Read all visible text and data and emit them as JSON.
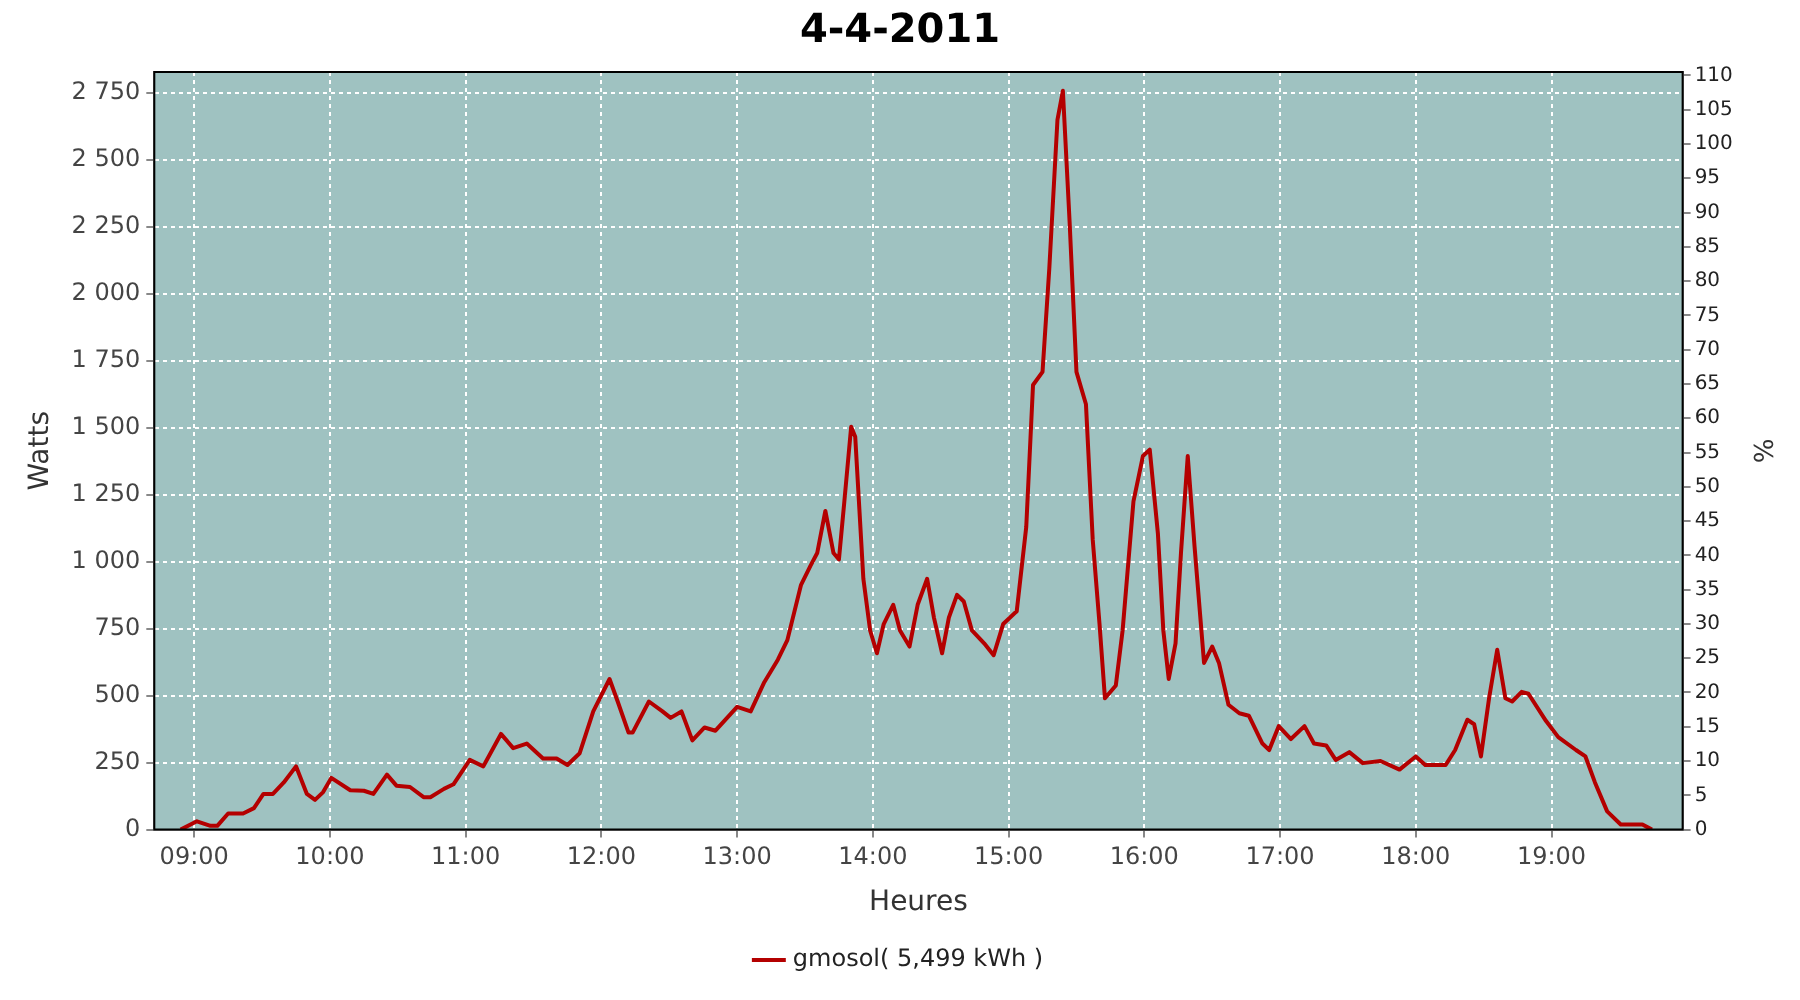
{
  "chart_data": {
    "type": "line",
    "title": "4-4-2011",
    "xlabel": "Heures",
    "ylabel": "Watts",
    "y2label": "%",
    "x": [
      8.9,
      9.02,
      9.12,
      9.17,
      9.25,
      9.36,
      9.44,
      9.51,
      9.58,
      9.66,
      9.75,
      9.83,
      9.89,
      9.95,
      10.01,
      10.15,
      10.25,
      10.32,
      10.42,
      10.49,
      10.59,
      10.69,
      10.74,
      10.84,
      10.91,
      11.03,
      11.13,
      11.26,
      11.35,
      11.45,
      11.57,
      11.67,
      11.75,
      11.84,
      11.94,
      12.06,
      12.12,
      12.2,
      12.23,
      12.35,
      12.45,
      12.51,
      12.59,
      12.67,
      12.76,
      12.84,
      13.0,
      13.1,
      13.2,
      13.3,
      13.37,
      13.47,
      13.54,
      13.59,
      13.65,
      13.71,
      13.75,
      13.79,
      13.84,
      13.87,
      13.93,
      13.98,
      14.03,
      14.08,
      14.15,
      14.2,
      14.27,
      14.33,
      14.4,
      14.45,
      14.51,
      14.56,
      14.62,
      14.67,
      14.73,
      14.82,
      14.89,
      14.96,
      15.06,
      15.13,
      15.18,
      15.25,
      15.3,
      15.36,
      15.4,
      15.45,
      15.5,
      15.57,
      15.62,
      15.67,
      15.71,
      15.79,
      15.84,
      15.92,
      15.99,
      16.04,
      16.1,
      16.14,
      16.18,
      16.23,
      16.27,
      16.32,
      16.37,
      16.44,
      16.5,
      16.55,
      16.62,
      16.7,
      16.77,
      16.87,
      16.92,
      16.99,
      17.08,
      17.18,
      17.25,
      17.34,
      17.41,
      17.51,
      17.61,
      17.74,
      17.88,
      18.0,
      18.07,
      18.22,
      18.29,
      18.38,
      18.43,
      18.48,
      18.54,
      18.6,
      18.66,
      18.71,
      18.78,
      18.83,
      18.96,
      19.05,
      19.18,
      19.25,
      19.32,
      19.41,
      19.51,
      19.67,
      19.74
    ],
    "series": [
      {
        "name": "gmosol( 5,499 kWh )",
        "color": "#b40000",
        "values": [
          0,
          31,
          14,
          14,
          60,
          60,
          80,
          133,
          133,
          176,
          236,
          133,
          111,
          140,
          193,
          147,
          145,
          133,
          205,
          164,
          159,
          121,
          121,
          152,
          169,
          260,
          236,
          357,
          304,
          321,
          265,
          265,
          241,
          285,
          441,
          562,
          478,
          362,
          362,
          478,
          441,
          417,
          441,
          333,
          381,
          369,
          458,
          441,
          550,
          634,
          707,
          912,
          984,
          1032,
          1189,
          1032,
          1008,
          1225,
          1503,
          1466,
          936,
          743,
          658,
          767,
          839,
          743,
          683,
          839,
          936,
          791,
          658,
          791,
          876,
          851,
          743,
          695,
          651,
          767,
          815,
          1129,
          1659,
          1708,
          2094,
          2648,
          2757,
          2263,
          1708,
          1587,
          1081,
          767,
          490,
          538,
          743,
          1225,
          1394,
          1418,
          1105,
          743,
          562,
          695,
          1032,
          1394,
          1057,
          622,
          683,
          622,
          466,
          434,
          425,
          321,
          297,
          386,
          338,
          386,
          321,
          314,
          260,
          289,
          248,
          256,
          224,
          273,
          241,
          241,
          297,
          410,
          393,
          273,
          490,
          671,
          490,
          478,
          514,
          507,
          405,
          345,
          297,
          273,
          176,
          68,
          19,
          19,
          0
        ]
      }
    ],
    "xlim": [
      8.706,
      19.966
    ],
    "xticks": [
      {
        "value": 9,
        "label": "09:00"
      },
      {
        "value": 10,
        "label": "10:00"
      },
      {
        "value": 11,
        "label": "11:00"
      },
      {
        "value": 12,
        "label": "12:00"
      },
      {
        "value": 13,
        "label": "13:00"
      },
      {
        "value": 14,
        "label": "14:00"
      },
      {
        "value": 15,
        "label": "15:00"
      },
      {
        "value": 16,
        "label": "16:00"
      },
      {
        "value": 17,
        "label": "17:00"
      },
      {
        "value": 18,
        "label": "18:00"
      },
      {
        "value": 19,
        "label": "19:00"
      }
    ],
    "ylim": [
      0,
      2827
    ],
    "yticks": [
      0,
      250,
      500,
      750,
      {
        "value": 1000,
        "label": "1 000"
      },
      {
        "value": 1250,
        "label": "1 250"
      },
      {
        "value": 1500,
        "label": "1 500"
      },
      {
        "value": 1750,
        "label": "1 750"
      },
      {
        "value": 2000,
        "label": "2 000"
      },
      {
        "value": 2250,
        "label": "2 250"
      },
      {
        "value": 2500,
        "label": "2 500"
      },
      {
        "value": 2750,
        "label": "2 750"
      }
    ],
    "y2lim": [
      0,
      110.5
    ],
    "y2ticks": [
      0,
      5,
      10,
      15,
      20,
      25,
      30,
      35,
      40,
      45,
      50,
      55,
      60,
      65,
      70,
      75,
      80,
      85,
      90,
      95,
      100,
      105,
      110
    ],
    "grid": true,
    "legend": "bottom",
    "marker": "none",
    "line_style": "solid"
  }
}
